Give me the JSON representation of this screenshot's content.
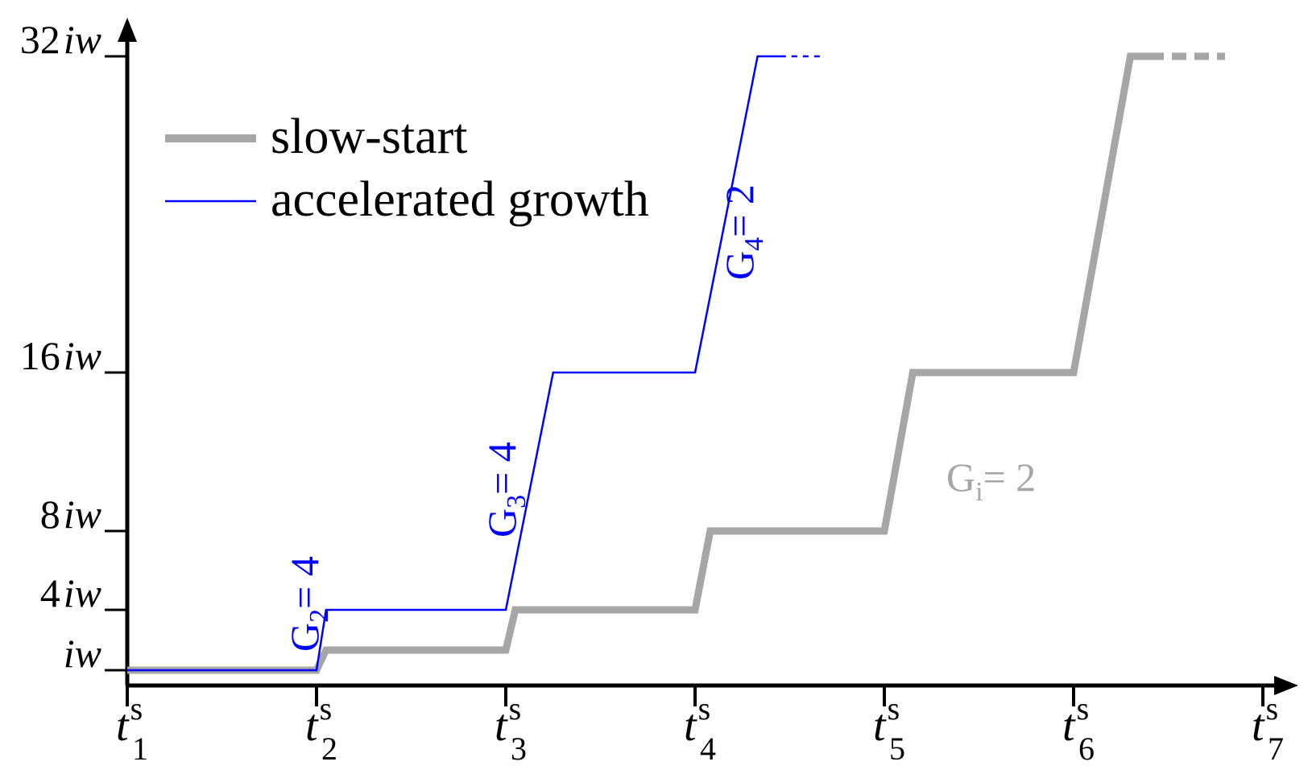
{
  "chart_data": {
    "type": "line",
    "y_tick_labels": [
      {
        "num": "",
        "unit": "iw",
        "value": 1
      },
      {
        "num": "4",
        "unit": "iw",
        "value": 4
      },
      {
        "num": "8",
        "unit": "iw",
        "value": 8
      },
      {
        "num": "16",
        "unit": "iw",
        "value": 16
      },
      {
        "num": "32",
        "unit": "iw",
        "value": 32
      }
    ],
    "x_tick_labels": [
      {
        "main": "t",
        "sup": "s",
        "sub": "1",
        "value": 1
      },
      {
        "main": "t",
        "sup": "s",
        "sub": "2",
        "value": 2
      },
      {
        "main": "t",
        "sup": "s",
        "sub": "3",
        "value": 3
      },
      {
        "main": "t",
        "sup": "s",
        "sub": "4",
        "value": 4
      },
      {
        "main": "t",
        "sup": "s",
        "sub": "5",
        "value": 5
      },
      {
        "main": "t",
        "sup": "s",
        "sub": "6",
        "value": 6
      },
      {
        "main": "t",
        "sup": "s",
        "sub": "7",
        "value": 7
      }
    ],
    "series": [
      {
        "name": "slow-start",
        "color": "#a6a6a6",
        "points": [
          [
            1,
            1
          ],
          [
            2,
            1
          ],
          [
            2.05,
            2
          ],
          [
            3,
            2
          ],
          [
            3.05,
            4
          ],
          [
            4,
            4
          ],
          [
            4.08,
            8
          ],
          [
            5,
            8
          ],
          [
            5.15,
            16
          ],
          [
            6,
            16
          ],
          [
            6.3,
            32
          ],
          [
            6.4,
            32
          ]
        ],
        "dashed_tail": [
          [
            6.4,
            32
          ],
          [
            6.8,
            32
          ]
        ]
      },
      {
        "name": "accelerated growth",
        "color": "#0000ff",
        "points": [
          [
            1,
            1
          ],
          [
            2,
            1
          ],
          [
            2.05,
            4
          ],
          [
            3,
            4
          ],
          [
            3.25,
            16
          ],
          [
            4,
            16
          ],
          [
            4.33,
            32
          ],
          [
            4.45,
            32
          ]
        ],
        "dashed_tail": [
          [
            4.45,
            32
          ],
          [
            4.67,
            32
          ]
        ]
      }
    ],
    "annotations": [
      {
        "base": "G",
        "sub": "2",
        "rest": "= 4",
        "color": "#0000ff"
      },
      {
        "base": "G",
        "sub": "3",
        "rest": "= 4",
        "color": "#0000ff"
      },
      {
        "base": "G",
        "sub": "4",
        "rest": "= 2",
        "color": "#0000ff"
      },
      {
        "base": "G",
        "sub": "i",
        "rest": "= 2",
        "color": "#a6a6a6"
      }
    ],
    "legend": {
      "placement": "top-left"
    },
    "grid": false
  }
}
